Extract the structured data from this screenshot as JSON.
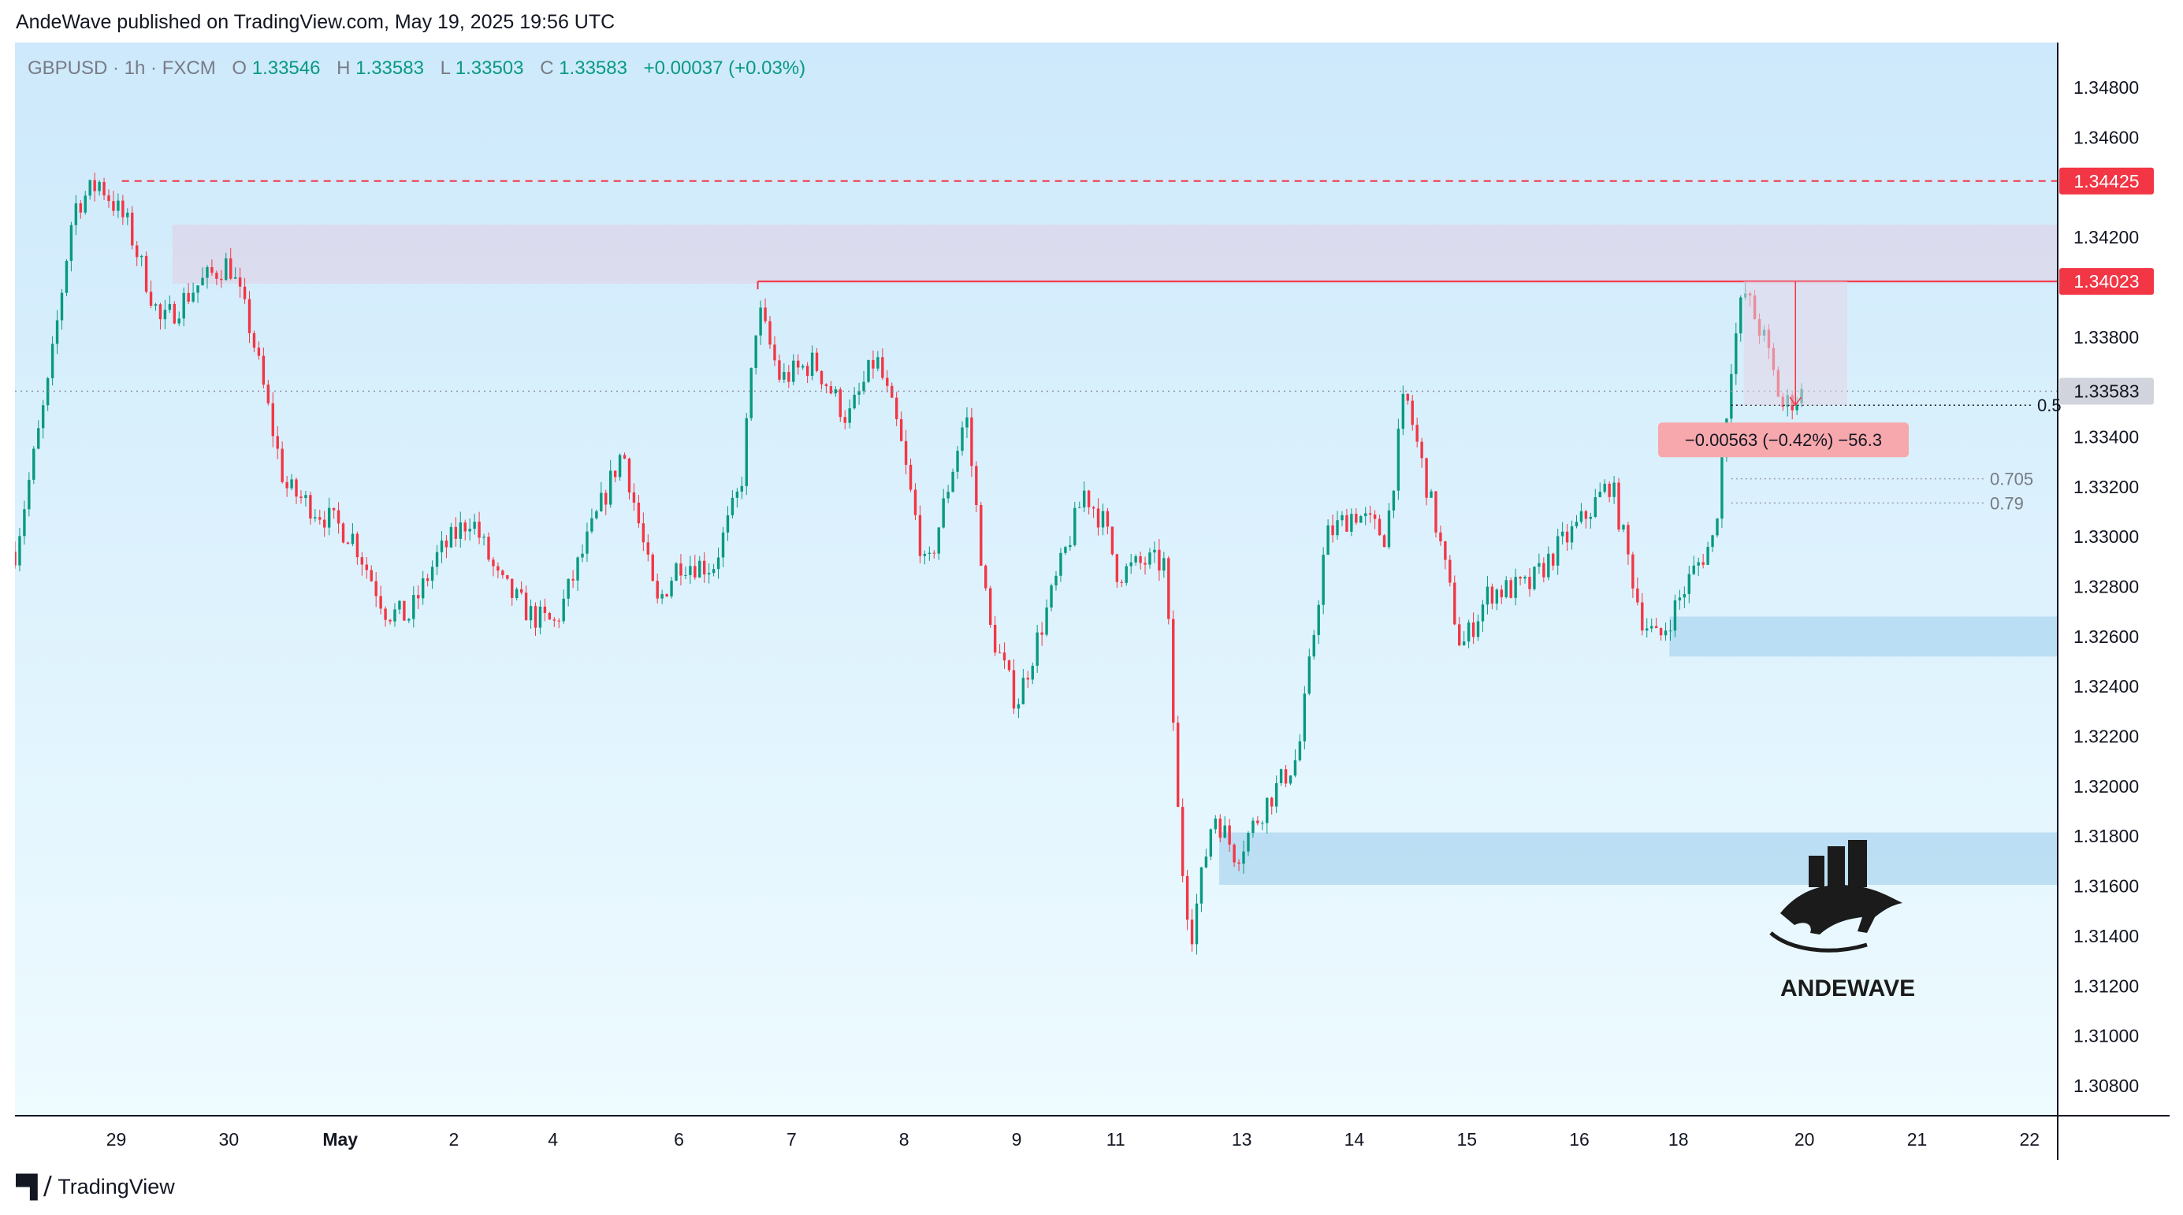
{
  "publish_note": "AndeWave published on TradingView.com, May 19, 2025 19:56 UTC",
  "footer_brand": "TradingView",
  "watermark_text": "ANDEWAVE",
  "colors": {
    "up": "#089981",
    "down": "#f23645",
    "bg_top": "#cde9fb",
    "bg_bottom": "#eefbff",
    "zone": "#a9d4f0",
    "supply": "#dcd7ea",
    "level_red": "#f23645",
    "price_gray": "#d1d4dc"
  },
  "chart_data": {
    "type": "candlestick",
    "symbol_label": "GBPUSD · 1h · FXCM",
    "ohlc": {
      "o_label": "O",
      "o": "1.33546",
      "h_label": "H",
      "h": "1.33583",
      "l_label": "L",
      "l": "1.33503",
      "c_label": "C",
      "c": "1.33583",
      "change": "+0.00037 (+0.03%)"
    },
    "ylim": [
      1.3068,
      1.3498
    ],
    "y_ticks": [
      "1.34800",
      "1.34600",
      "1.34200",
      "1.33800",
      "1.33400",
      "1.33200",
      "1.33000",
      "1.32800",
      "1.32600",
      "1.32400",
      "1.32200",
      "1.32000",
      "1.31800",
      "1.31600",
      "1.31400",
      "1.31200",
      "1.31000",
      "1.30800"
    ],
    "x_ticks": [
      "29",
      "30",
      "May",
      "2",
      "4",
      "6",
      "7",
      "8",
      "9",
      "11",
      "13",
      "14",
      "15",
      "16",
      "18",
      "20",
      "21",
      "22"
    ],
    "x_tick_positions": [
      2.0,
      3.0,
      3.99,
      5.0,
      5.88,
      7.0,
      8.0,
      9.0,
      10.0,
      10.88,
      12.0,
      13.0,
      14.0,
      15.0,
      15.88,
      17.0,
      18.0,
      19.0
    ],
    "x_range": [
      1.1,
      19.25
    ],
    "path": [
      [
        1.1,
        1.3294
      ],
      [
        1.4,
        1.3362
      ],
      [
        1.62,
        1.3432
      ],
      [
        1.85,
        1.3442
      ],
      [
        2.1,
        1.3425
      ],
      [
        2.4,
        1.3385
      ],
      [
        2.7,
        1.34
      ],
      [
        3.0,
        1.341
      ],
      [
        3.2,
        1.3382
      ],
      [
        3.5,
        1.332
      ],
      [
        3.8,
        1.331
      ],
      [
        4.1,
        1.33
      ],
      [
        4.4,
        1.327
      ],
      [
        4.6,
        1.3268
      ],
      [
        4.85,
        1.3292
      ],
      [
        5.15,
        1.3308
      ],
      [
        5.4,
        1.3282
      ],
      [
        5.7,
        1.3268
      ],
      [
        5.9,
        1.3265
      ],
      [
        6.2,
        1.33
      ],
      [
        6.5,
        1.3335
      ],
      [
        6.8,
        1.3272
      ],
      [
        7.0,
        1.329
      ],
      [
        7.3,
        1.3288
      ],
      [
        7.55,
        1.332
      ],
      [
        7.7,
        1.3392
      ],
      [
        7.9,
        1.3363
      ],
      [
        8.2,
        1.337
      ],
      [
        8.5,
        1.3347
      ],
      [
        8.75,
        1.3372
      ],
      [
        8.95,
        1.3342
      ],
      [
        9.2,
        1.3284
      ],
      [
        9.55,
        1.335
      ],
      [
        9.75,
        1.3265
      ],
      [
        10.0,
        1.3233
      ],
      [
        10.3,
        1.3275
      ],
      [
        10.6,
        1.3318
      ],
      [
        10.78,
        1.3305
      ],
      [
        10.9,
        1.3285
      ],
      [
        11.15,
        1.329
      ],
      [
        11.32,
        1.3289
      ],
      [
        11.45,
        1.3175
      ],
      [
        11.55,
        1.314
      ],
      [
        11.75,
        1.319
      ],
      [
        11.95,
        1.3172
      ],
      [
        12.2,
        1.3192
      ],
      [
        12.5,
        1.3212
      ],
      [
        12.75,
        1.33
      ],
      [
        13.0,
        1.331
      ],
      [
        13.28,
        1.33
      ],
      [
        13.45,
        1.3358
      ],
      [
        13.75,
        1.33
      ],
      [
        13.95,
        1.3255
      ],
      [
        14.2,
        1.3278
      ],
      [
        14.55,
        1.328
      ],
      [
        14.8,
        1.3295
      ],
      [
        15.0,
        1.3305
      ],
      [
        15.28,
        1.3322
      ],
      [
        15.55,
        1.3268
      ],
      [
        15.7,
        1.3258
      ],
      [
        16.0,
        1.3285
      ],
      [
        16.2,
        1.33
      ],
      [
        16.35,
        1.337
      ],
      [
        16.46,
        1.3399
      ],
      [
        16.65,
        1.3378
      ],
      [
        16.8,
        1.3352
      ],
      [
        17.0,
        1.3358
      ]
    ],
    "horizontal_levels": [
      {
        "label": "1.34425",
        "price": 1.34425,
        "style": "dashed"
      },
      {
        "label": "1.34023",
        "price": 1.34023,
        "style": "solid"
      },
      {
        "label": "1.33583",
        "price": 1.33583,
        "style": "dotted"
      }
    ],
    "fib_levels": [
      {
        "label": "0.5",
        "price": 1.33527
      },
      {
        "label": "0.705",
        "price": 1.33232
      },
      {
        "label": "0.79",
        "price": 1.33135
      }
    ],
    "zones": [
      {
        "name": "supply",
        "x": [
          2.5,
          19.25
        ],
        "y": [
          1.34014,
          1.3425
        ]
      },
      {
        "name": "demand-1",
        "x": [
          15.8,
          19.25
        ],
        "y": [
          1.3252,
          1.3268
        ]
      },
      {
        "name": "demand-2",
        "x": [
          11.8,
          19.25
        ],
        "y": [
          1.31605,
          1.31815
        ]
      }
    ],
    "measure_label": "−0.00563 (−0.42%) −56.3"
  }
}
